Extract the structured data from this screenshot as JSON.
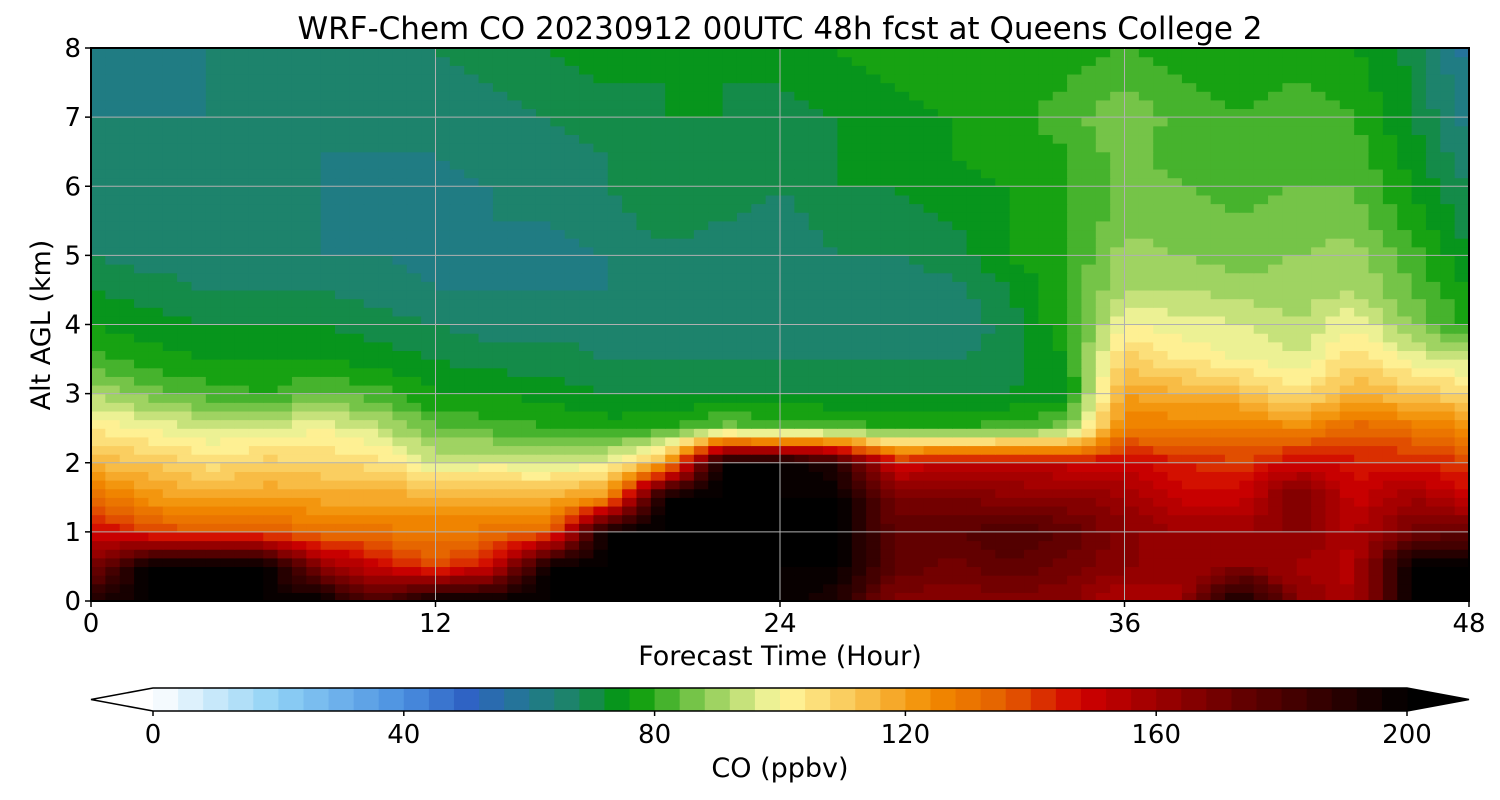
{
  "chart_data": {
    "type": "heatmap",
    "title": "WRF-Chem CO  20230912 00UTC 48h fcst at Queens College 2",
    "xlabel": "Forecast Time (Hour)",
    "ylabel": "Alt AGL (km)",
    "xlim": [
      0,
      48
    ],
    "ylim": [
      0,
      8
    ],
    "xticks": [
      0,
      12,
      24,
      36,
      48
    ],
    "yticks": [
      0,
      1,
      2,
      3,
      4,
      5,
      6,
      7,
      8
    ],
    "grid": true,
    "colorbar": {
      "label": "CO  (ppbv)",
      "range": [
        0,
        200
      ],
      "ticks": [
        0,
        40,
        80,
        120,
        160,
        200
      ],
      "extend": "both",
      "step": 4,
      "stops": [
        {
          "value": 0,
          "color": "#ffffff"
        },
        {
          "value": 20,
          "color": "#8fd1f5"
        },
        {
          "value": 40,
          "color": "#4a8fe0"
        },
        {
          "value": 50,
          "color": "#2f63c4"
        },
        {
          "value": 60,
          "color": "#22788f"
        },
        {
          "value": 68,
          "color": "#1b8660"
        },
        {
          "value": 76,
          "color": "#009a05"
        },
        {
          "value": 88,
          "color": "#8ccc55"
        },
        {
          "value": 100,
          "color": "#fff8a0"
        },
        {
          "value": 112,
          "color": "#f9c553"
        },
        {
          "value": 124,
          "color": "#f28c00"
        },
        {
          "value": 136,
          "color": "#e45e00"
        },
        {
          "value": 148,
          "color": "#d00000"
        },
        {
          "value": 172,
          "color": "#6a0000"
        },
        {
          "value": 200,
          "color": "#000000"
        }
      ]
    },
    "x": [
      0,
      2,
      4,
      6,
      8,
      10,
      12,
      14,
      16,
      18,
      20,
      22,
      24,
      26,
      28,
      30,
      32,
      34,
      36,
      38,
      40,
      42,
      44,
      46,
      48
    ],
    "y": [
      0,
      0.5,
      1,
      1.5,
      2,
      2.5,
      3,
      3.5,
      4,
      4.5,
      5,
      5.5,
      6,
      6.5,
      7,
      7.5,
      8
    ],
    "z": [
      [
        190,
        200,
        200,
        200,
        200,
        178,
        200,
        200,
        200,
        200,
        200,
        200,
        200,
        190,
        165,
        165,
        165,
        165,
        155,
        160,
        200,
        165,
        155,
        200,
        200
      ],
      [
        168,
        200,
        200,
        200,
        165,
        150,
        138,
        150,
        200,
        200,
        200,
        200,
        200,
        200,
        175,
        170,
        175,
        170,
        165,
        160,
        165,
        160,
        155,
        200,
        200
      ],
      [
        150,
        140,
        136,
        136,
        132,
        130,
        128,
        130,
        134,
        200,
        200,
        200,
        200,
        200,
        175,
        175,
        180,
        175,
        165,
        160,
        160,
        165,
        155,
        170,
        175
      ],
      [
        132,
        122,
        118,
        120,
        118,
        118,
        118,
        116,
        116,
        124,
        200,
        200,
        200,
        200,
        168,
        168,
        165,
        165,
        160,
        150,
        150,
        170,
        150,
        160,
        150
      ],
      [
        115,
        112,
        106,
        110,
        108,
        106,
        96,
        98,
        96,
        98,
        118,
        200,
        200,
        190,
        148,
        152,
        152,
        150,
        150,
        145,
        140,
        150,
        145,
        145,
        140
      ],
      [
        104,
        100,
        96,
        96,
        100,
        94,
        84,
        82,
        80,
        78,
        80,
        86,
        84,
        82,
        80,
        80,
        82,
        86,
        128,
        128,
        130,
        125,
        135,
        130,
        125
      ],
      [
        92,
        86,
        82,
        80,
        84,
        82,
        76,
        76,
        74,
        72,
        72,
        72,
        72,
        72,
        72,
        72,
        72,
        74,
        120,
        116,
        114,
        105,
        116,
        112,
        108
      ],
      [
        82,
        78,
        76,
        76,
        76,
        74,
        72,
        70,
        70,
        68,
        68,
        68,
        68,
        68,
        68,
        68,
        70,
        76,
        110,
        104,
        100,
        96,
        108,
        98,
        94
      ],
      [
        76,
        74,
        72,
        72,
        72,
        70,
        68,
        66,
        66,
        66,
        66,
        66,
        66,
        66,
        66,
        64,
        70,
        80,
        100,
        98,
        96,
        92,
        100,
        88,
        78
      ],
      [
        72,
        70,
        68,
        68,
        68,
        66,
        64,
        64,
        64,
        64,
        66,
        66,
        64,
        66,
        66,
        66,
        72,
        80,
        92,
        92,
        90,
        90,
        92,
        84,
        76
      ],
      [
        68,
        66,
        66,
        64,
        64,
        64,
        62,
        62,
        62,
        64,
        66,
        66,
        64,
        68,
        68,
        70,
        76,
        80,
        90,
        88,
        86,
        88,
        90,
        82,
        72
      ],
      [
        66,
        66,
        64,
        64,
        64,
        62,
        62,
        64,
        64,
        66,
        70,
        68,
        66,
        70,
        70,
        72,
        76,
        80,
        86,
        86,
        84,
        86,
        86,
        78,
        70
      ],
      [
        66,
        64,
        64,
        64,
        64,
        62,
        62,
        64,
        66,
        68,
        72,
        70,
        68,
        72,
        72,
        74,
        76,
        80,
        86,
        84,
        82,
        84,
        84,
        76,
        68
      ],
      [
        66,
        64,
        64,
        64,
        64,
        64,
        64,
        66,
        66,
        68,
        72,
        70,
        70,
        72,
        74,
        76,
        78,
        80,
        86,
        82,
        82,
        82,
        82,
        74,
        64
      ],
      [
        64,
        64,
        64,
        64,
        64,
        64,
        64,
        66,
        68,
        70,
        72,
        72,
        70,
        72,
        74,
        76,
        78,
        82,
        88,
        82,
        80,
        82,
        80,
        72,
        62
      ],
      [
        62,
        62,
        64,
        64,
        64,
        66,
        66,
        68,
        70,
        72,
        72,
        72,
        72,
        74,
        76,
        78,
        78,
        80,
        84,
        80,
        78,
        80,
        78,
        72,
        60
      ],
      [
        62,
        60,
        64,
        66,
        66,
        68,
        68,
        70,
        72,
        74,
        74,
        74,
        74,
        76,
        78,
        78,
        78,
        78,
        80,
        78,
        76,
        78,
        76,
        70,
        58
      ]
    ]
  }
}
